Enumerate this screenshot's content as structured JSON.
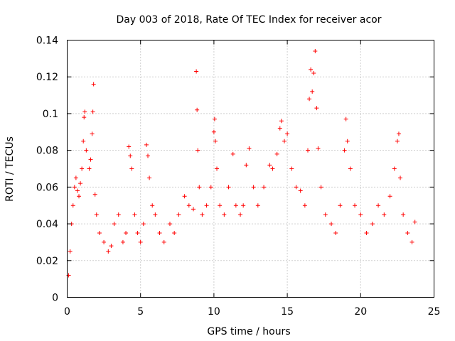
{
  "chart_data": {
    "type": "scatter",
    "title": "Day 003 of 2018, Rate Of TEC Index for receiver acor",
    "xlabel": "GPS time / hours",
    "ylabel": "ROTI / TECUs",
    "xlim": [
      0,
      25
    ],
    "ylim": [
      0,
      0.14
    ],
    "x_ticks": [
      0,
      5,
      10,
      15,
      20,
      25
    ],
    "x_tick_labels": [
      "0",
      "5",
      "10",
      "15",
      "20",
      "25"
    ],
    "y_ticks": [
      0,
      0.02,
      0.04,
      0.06,
      0.08,
      0.1,
      0.12,
      0.14
    ],
    "y_tick_labels": [
      "0",
      "0.02",
      "0.04",
      "0.06",
      "0.08",
      "0.1",
      "0.12",
      "0.14"
    ],
    "grid": true,
    "marker": "plus",
    "color": "#ff0000",
    "series": [
      {
        "name": "ROTI",
        "points": [
          [
            0.1,
            0.012
          ],
          [
            0.2,
            0.025
          ],
          [
            0.3,
            0.04
          ],
          [
            0.4,
            0.05
          ],
          [
            0.5,
            0.06
          ],
          [
            0.6,
            0.065
          ],
          [
            0.7,
            0.058
          ],
          [
            0.8,
            0.055
          ],
          [
            0.9,
            0.062
          ],
          [
            1.0,
            0.07
          ],
          [
            1.1,
            0.085
          ],
          [
            1.15,
            0.098
          ],
          [
            1.2,
            0.101
          ],
          [
            1.3,
            0.08
          ],
          [
            1.5,
            0.07
          ],
          [
            1.6,
            0.075
          ],
          [
            1.7,
            0.089
          ],
          [
            1.75,
            0.101
          ],
          [
            1.8,
            0.116
          ],
          [
            1.9,
            0.056
          ],
          [
            2.0,
            0.045
          ],
          [
            2.2,
            0.035
          ],
          [
            2.5,
            0.03
          ],
          [
            2.8,
            0.025
          ],
          [
            3.0,
            0.028
          ],
          [
            3.2,
            0.04
          ],
          [
            3.5,
            0.045
          ],
          [
            3.8,
            0.03
          ],
          [
            4.0,
            0.035
          ],
          [
            4.2,
            0.082
          ],
          [
            4.3,
            0.077
          ],
          [
            4.4,
            0.07
          ],
          [
            4.6,
            0.045
          ],
          [
            4.8,
            0.035
          ],
          [
            5.0,
            0.03
          ],
          [
            5.2,
            0.04
          ],
          [
            5.4,
            0.083
          ],
          [
            5.5,
            0.077
          ],
          [
            5.6,
            0.065
          ],
          [
            5.8,
            0.05
          ],
          [
            6.0,
            0.045
          ],
          [
            6.3,
            0.035
          ],
          [
            6.6,
            0.03
          ],
          [
            7.0,
            0.04
          ],
          [
            7.3,
            0.035
          ],
          [
            7.6,
            0.045
          ],
          [
            8.0,
            0.055
          ],
          [
            8.3,
            0.05
          ],
          [
            8.6,
            0.048
          ],
          [
            8.8,
            0.123
          ],
          [
            8.85,
            0.102
          ],
          [
            8.9,
            0.08
          ],
          [
            9.0,
            0.06
          ],
          [
            9.2,
            0.045
          ],
          [
            9.5,
            0.05
          ],
          [
            9.8,
            0.06
          ],
          [
            10.0,
            0.09
          ],
          [
            10.05,
            0.097
          ],
          [
            10.1,
            0.085
          ],
          [
            10.2,
            0.07
          ],
          [
            10.4,
            0.05
          ],
          [
            10.7,
            0.045
          ],
          [
            11.0,
            0.06
          ],
          [
            11.3,
            0.078
          ],
          [
            11.5,
            0.05
          ],
          [
            11.8,
            0.045
          ],
          [
            12.0,
            0.05
          ],
          [
            12.2,
            0.072
          ],
          [
            12.4,
            0.081
          ],
          [
            12.7,
            0.06
          ],
          [
            13.0,
            0.05
          ],
          [
            13.4,
            0.06
          ],
          [
            13.8,
            0.072
          ],
          [
            14.0,
            0.07
          ],
          [
            14.3,
            0.078
          ],
          [
            14.5,
            0.092
          ],
          [
            14.6,
            0.096
          ],
          [
            14.8,
            0.085
          ],
          [
            15.0,
            0.089
          ],
          [
            15.3,
            0.07
          ],
          [
            15.6,
            0.06
          ],
          [
            15.9,
            0.058
          ],
          [
            16.2,
            0.05
          ],
          [
            16.4,
            0.08
          ],
          [
            16.5,
            0.108
          ],
          [
            16.6,
            0.124
          ],
          [
            16.7,
            0.112
          ],
          [
            16.8,
            0.122
          ],
          [
            16.9,
            0.134
          ],
          [
            17.0,
            0.103
          ],
          [
            17.1,
            0.081
          ],
          [
            17.3,
            0.06
          ],
          [
            17.6,
            0.045
          ],
          [
            18.0,
            0.04
          ],
          [
            18.3,
            0.035
          ],
          [
            18.6,
            0.05
          ],
          [
            18.9,
            0.08
          ],
          [
            19.0,
            0.097
          ],
          [
            19.1,
            0.085
          ],
          [
            19.3,
            0.07
          ],
          [
            19.6,
            0.05
          ],
          [
            20.0,
            0.045
          ],
          [
            20.4,
            0.035
          ],
          [
            20.8,
            0.04
          ],
          [
            21.2,
            0.05
          ],
          [
            21.6,
            0.045
          ],
          [
            22.0,
            0.055
          ],
          [
            22.3,
            0.07
          ],
          [
            22.5,
            0.085
          ],
          [
            22.6,
            0.089
          ],
          [
            22.7,
            0.065
          ],
          [
            22.9,
            0.045
          ],
          [
            23.2,
            0.035
          ],
          [
            23.5,
            0.03
          ],
          [
            23.7,
            0.041
          ]
        ]
      }
    ]
  }
}
